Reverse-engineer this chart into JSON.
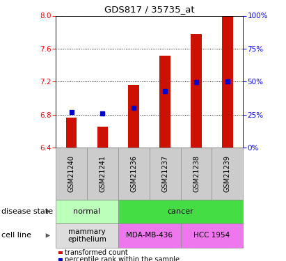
{
  "title": "GDS817 / 35735_at",
  "samples": [
    "GSM21240",
    "GSM21241",
    "GSM21236",
    "GSM21237",
    "GSM21238",
    "GSM21239"
  ],
  "bar_bottom": 6.4,
  "bar_tops": [
    6.76,
    6.65,
    7.16,
    7.51,
    7.78,
    8.0
  ],
  "percentile_values": [
    6.83,
    6.81,
    6.88,
    7.08,
    7.19,
    7.2
  ],
  "ylim": [
    6.4,
    8.0
  ],
  "yticks_left": [
    6.4,
    6.8,
    7.2,
    7.6,
    8.0
  ],
  "yticks_right": [
    0,
    25,
    50,
    75,
    100
  ],
  "bar_color": "#cc1100",
  "percentile_color": "#0000cc",
  "disease_state_groups": [
    {
      "label": "normal",
      "span": [
        0,
        2
      ],
      "color": "#bbffbb"
    },
    {
      "label": "cancer",
      "span": [
        2,
        6
      ],
      "color": "#44dd44"
    }
  ],
  "cell_line_groups": [
    {
      "label": "mammary\nepithelium",
      "span": [
        0,
        2
      ],
      "color": "#dddddd"
    },
    {
      "label": "MDA-MB-436",
      "span": [
        2,
        4
      ],
      "color": "#ee77ee"
    },
    {
      "label": "HCC 1954",
      "span": [
        4,
        6
      ],
      "color": "#ee77ee"
    }
  ],
  "legend_items": [
    {
      "label": "transformed count",
      "color": "#cc1100"
    },
    {
      "label": "percentile rank within the sample",
      "color": "#0000cc"
    }
  ],
  "disease_state_label": "disease state",
  "cell_line_label": "cell line",
  "tick_bg_color": "#cccccc",
  "bar_width": 0.35
}
